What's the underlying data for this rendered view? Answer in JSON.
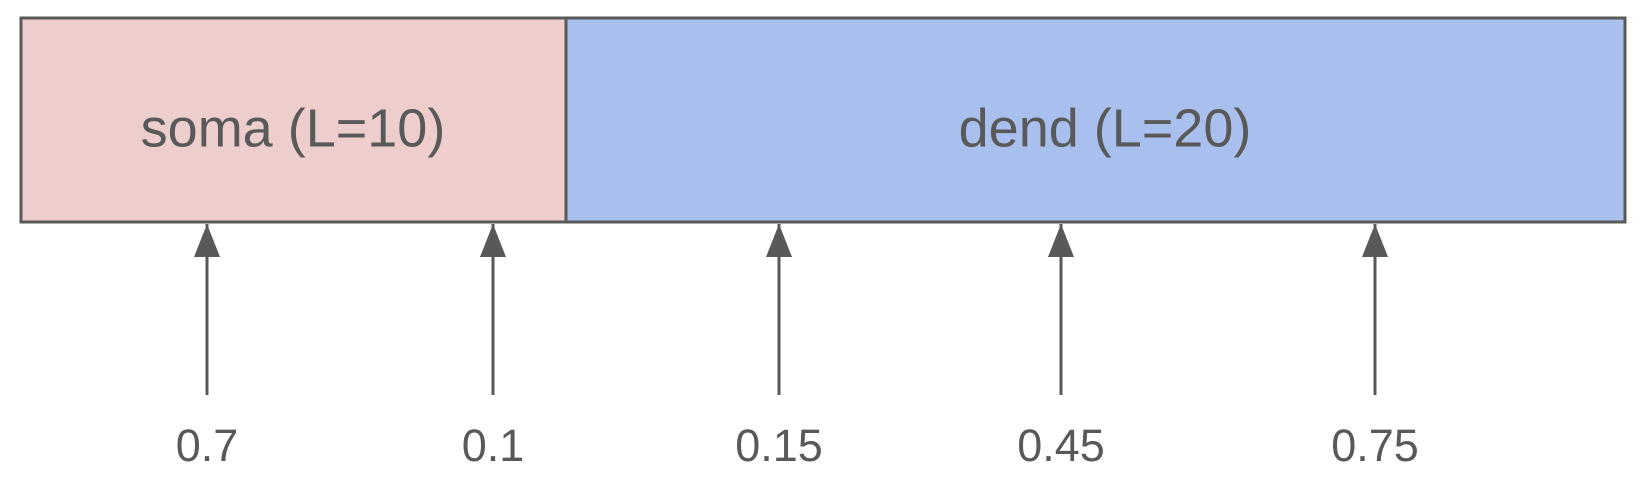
{
  "sections": [
    {
      "name": "soma",
      "label": "soma (L=10)",
      "color": "#eecdcd"
    },
    {
      "name": "dend",
      "label": "dend (L=20)",
      "color": "#a9c0ef"
    }
  ],
  "markers": [
    {
      "label": "0.7"
    },
    {
      "label": "0.1"
    },
    {
      "label": "0.15"
    },
    {
      "label": "0.45"
    },
    {
      "label": "0.75"
    }
  ],
  "colors": {
    "stroke": "#595959",
    "text": "#595959"
  }
}
